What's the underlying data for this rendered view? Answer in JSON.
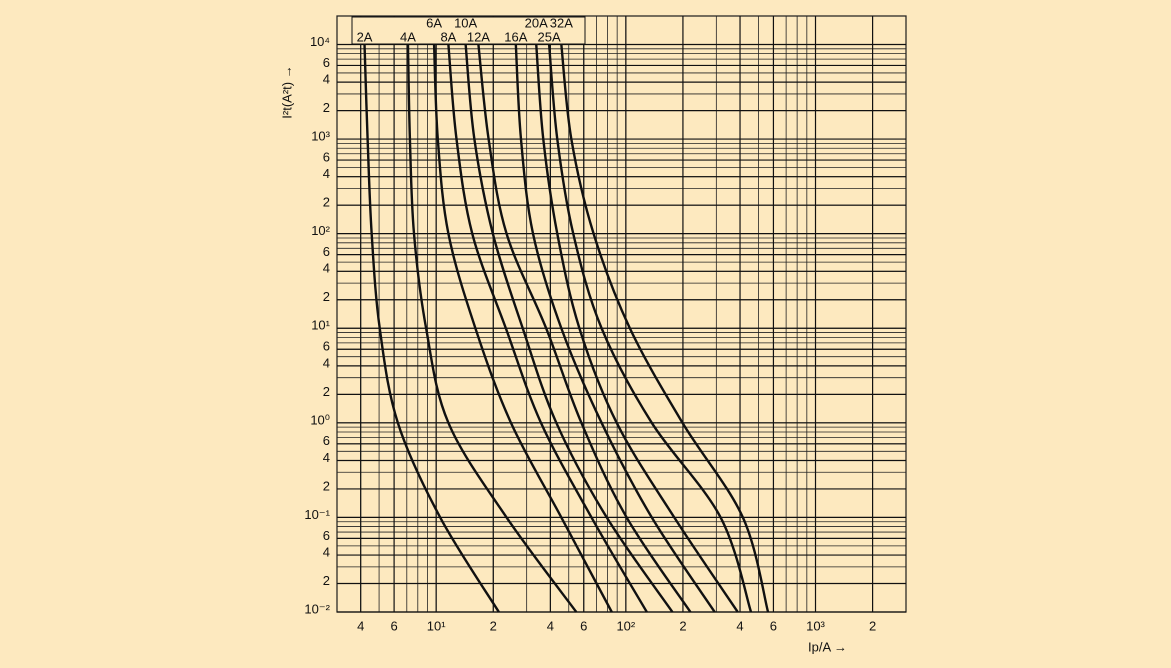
{
  "chart_data": {
    "type": "line",
    "y_label": "I²t(A²t) →",
    "x_label": "Ip/A →",
    "x_log": true,
    "y_log": true,
    "grid": true,
    "minor_grid": true,
    "xlim": [
      3,
      3000
    ],
    "ylim": [
      0.01,
      20000
    ],
    "xticks": [
      4,
      6,
      {
        "value": 10,
        "label": "10¹"
      },
      {
        "value": 20,
        "label": "2"
      },
      {
        "value": 40,
        "label": "4"
      },
      {
        "value": 60,
        "label": "6"
      },
      {
        "value": 100,
        "label": "10²"
      },
      {
        "value": 200,
        "label": "2"
      },
      {
        "value": 400,
        "label": "4"
      },
      {
        "value": 600,
        "label": "6"
      },
      {
        "value": 1000,
        "label": "10³"
      },
      {
        "value": 2000,
        "label": "2"
      }
    ],
    "yticks": [
      {
        "value": 0.01,
        "label": "10⁻²"
      },
      {
        "value": 0.02,
        "label": "2"
      },
      {
        "value": 0.04,
        "label": "4"
      },
      {
        "value": 0.06,
        "label": "6"
      },
      {
        "value": 0.1,
        "label": "10⁻¹"
      },
      {
        "value": 0.2,
        "label": "2"
      },
      {
        "value": 0.4,
        "label": "4"
      },
      {
        "value": 0.6,
        "label": "6"
      },
      {
        "value": 1,
        "label": "10⁰"
      },
      2,
      4,
      6,
      {
        "value": 10,
        "label": "10¹"
      },
      {
        "value": 20,
        "label": "2"
      },
      {
        "value": 40,
        "label": "4"
      },
      {
        "value": 60,
        "label": "6"
      },
      {
        "value": 100,
        "label": "10²"
      },
      {
        "value": 200,
        "label": "2"
      },
      {
        "value": 400,
        "label": "4"
      },
      {
        "value": 600,
        "label": "6"
      },
      {
        "value": 1000,
        "label": "10³"
      },
      {
        "value": 2000,
        "label": "2"
      },
      {
        "value": 4000,
        "label": "4"
      },
      {
        "value": 6000,
        "label": "6"
      },
      {
        "value": 10000,
        "label": "10⁴"
      }
    ],
    "series": [
      {
        "name": "2A",
        "color": "#111111",
        "x": [
          4.19,
          4.35,
          4.57,
          5.04,
          6.28,
          10.5,
          21.4
        ],
        "values": [
          10000,
          1000,
          100,
          10,
          1,
          0.1,
          0.01
        ]
      },
      {
        "name": "4A",
        "color": "#111111",
        "x": [
          7.1,
          7.27,
          7.64,
          8.85,
          11.6,
          23.5,
          54.8
        ],
        "values": [
          10000,
          1000,
          100,
          10,
          1,
          0.1,
          0.01
        ]
      },
      {
        "name": "6A",
        "color": "#111111",
        "x": [
          9.75,
          10.2,
          11.6,
          16.1,
          24.8,
          45.7,
          84.3
        ],
        "values": [
          10000,
          1000,
          100,
          10,
          1,
          0.1,
          0.01
        ]
      },
      {
        "name": "8A",
        "color": "#111111",
        "x": [
          11.6,
          12.8,
          15.5,
          23.3,
          35.7,
          65.9,
          129
        ],
        "values": [
          10000,
          1000,
          100,
          10,
          1,
          0.1,
          0.01
        ]
      },
      {
        "name": "10A",
        "color": "#111111",
        "x": [
          14.3,
          15.9,
          19.9,
          28.6,
          43,
          79.3,
          176
        ],
        "values": [
          10000,
          1000,
          100,
          10,
          1,
          0.1,
          0.01
        ]
      },
      {
        "name": "12A",
        "color": "#111111",
        "x": [
          16.7,
          18.9,
          23.5,
          38,
          58.3,
          101,
          219
        ],
        "values": [
          10000,
          1000,
          100,
          10,
          1,
          0.1,
          0.01
        ]
      },
      {
        "name": "16A",
        "color": "#111111",
        "x": [
          26.3,
          28,
          32.4,
          45.7,
          74.5,
          137,
          294
        ],
        "values": [
          10000,
          1000,
          100,
          10,
          1,
          0.1,
          0.01
        ]
      },
      {
        "name": "20A",
        "color": "#111111",
        "x": [
          33.7,
          36.7,
          43.5,
          56.9,
          89.5,
          180,
          389
        ],
        "values": [
          10000,
          1000,
          100,
          10,
          1,
          0.1,
          0.01
        ]
      },
      {
        "name": "25A",
        "color": "#111111",
        "x": [
          39.4,
          43.5,
          52.8,
          74.5,
          137,
          316,
          457
        ],
        "values": [
          10000,
          1000,
          100,
          10,
          1,
          0.1,
          0.01
        ]
      },
      {
        "name": "32A",
        "color": "#111111",
        "x": [
          45.7,
          51.6,
          67.6,
          105,
          199,
          414,
          562
        ],
        "values": [
          10000,
          1000,
          100,
          10,
          1,
          0.1,
          0.01
        ]
      }
    ]
  }
}
